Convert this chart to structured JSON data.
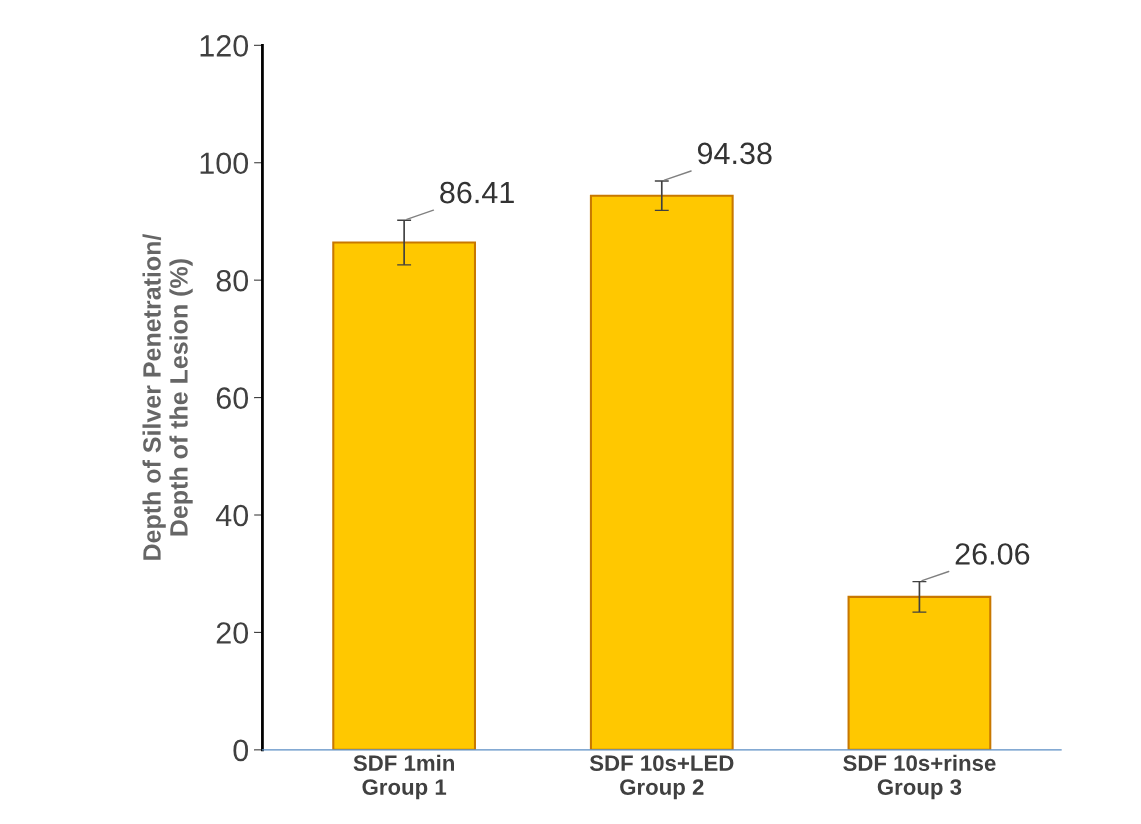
{
  "chart_data": {
    "type": "bar",
    "ylabel": "Depth of Silver Penetration/\nDepth of the Lesion (%)",
    "categories": [
      "SDF 1min\nGroup 1",
      "SDF 10s+LED\nGroup 2",
      "SDF 10s+rinse\nGroup 3"
    ],
    "values": [
      86.41,
      94.38,
      26.06
    ],
    "errors": [
      3.8,
      2.5,
      2.6
    ],
    "color": "#ffc800",
    "ylim": [
      0,
      120
    ],
    "yticks": [
      0,
      20,
      40,
      60,
      80,
      100,
      120
    ],
    "data_labels": true,
    "grid": false,
    "legend": false
  }
}
